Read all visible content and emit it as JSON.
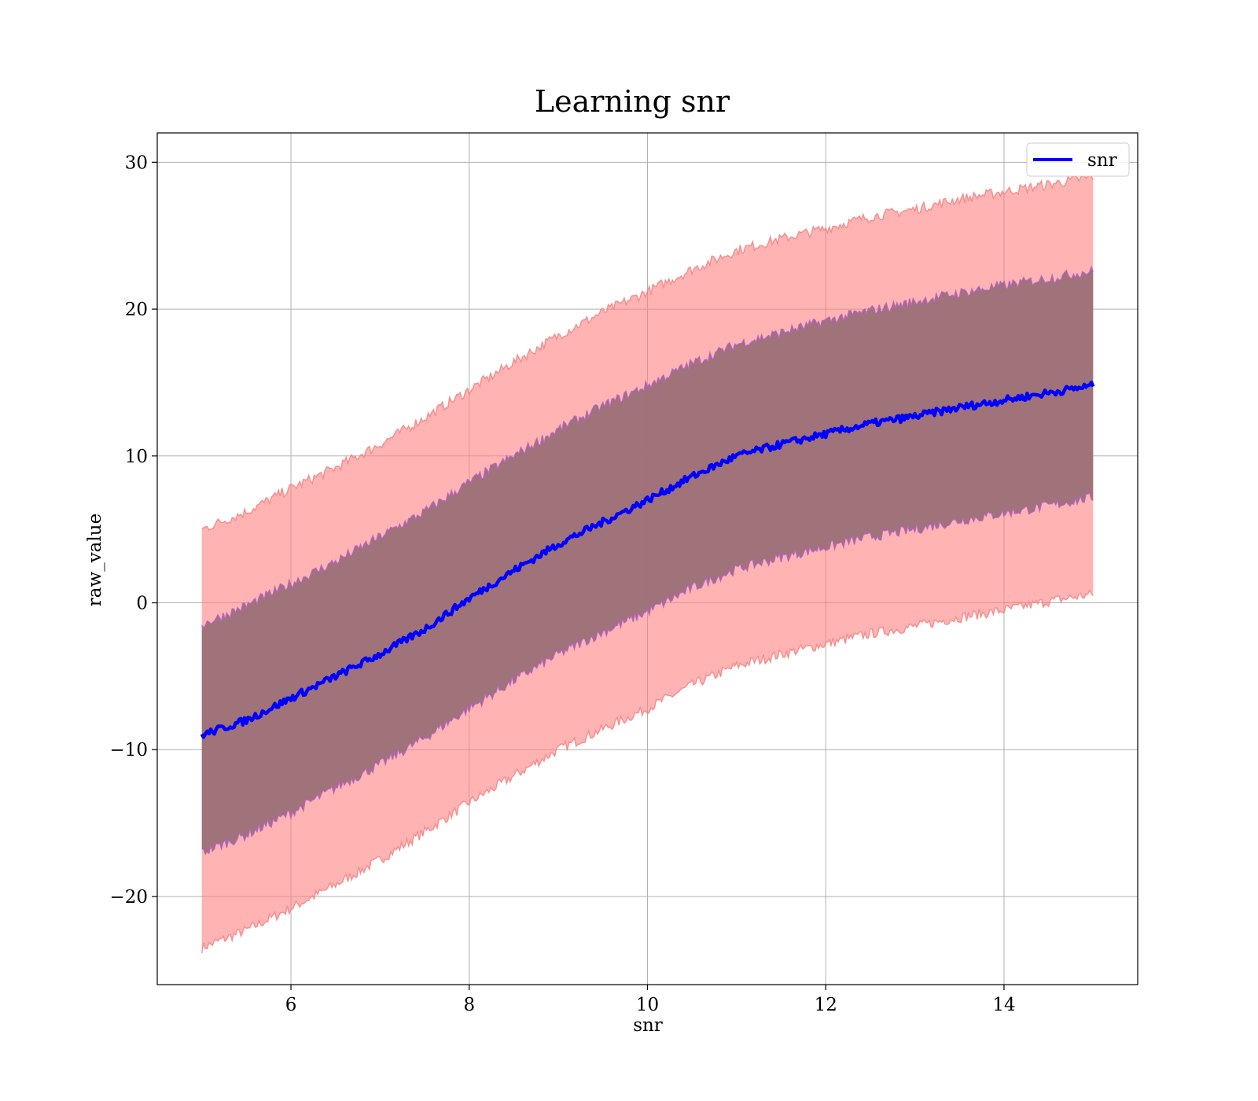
{
  "chart_data": {
    "type": "line",
    "title": "Learning snr",
    "xlabel": "snr",
    "ylabel": "raw_value",
    "xlim": [
      4.5,
      15.5
    ],
    "ylim": [
      -26,
      32
    ],
    "xticks": [
      6,
      8,
      10,
      12,
      14
    ],
    "yticks": [
      -20,
      -10,
      0,
      10,
      20,
      30
    ],
    "xtick_labels": [
      "6",
      "8",
      "10",
      "12",
      "14"
    ],
    "ytick_labels": [
      "−20",
      "−10",
      "0",
      "10",
      "20",
      "30"
    ],
    "grid": true,
    "legend": {
      "position": "top-right",
      "entries": [
        "snr"
      ]
    },
    "colors": {
      "line": "#0000ff",
      "outer_band": "#ff8080",
      "outer_band_edge": "#f08080",
      "inner_band": "#9b6f77",
      "inner_band_edge": "#b060c0",
      "grid": "#b0b0b0"
    },
    "x": [
      5,
      5.5,
      6,
      6.5,
      7,
      7.5,
      8,
      8.5,
      9,
      9.5,
      10,
      10.5,
      11,
      11.5,
      12,
      12.5,
      13,
      13.5,
      14,
      14.5,
      15
    ],
    "series": [
      {
        "name": "snr",
        "values": [
          -9,
          -8,
          -6.5,
          -5,
          -3.5,
          -1.8,
          0.3,
          2.2,
          4,
          5.5,
          7,
          8.6,
          10,
          10.8,
          11.5,
          12.2,
          12.7,
          13.3,
          13.8,
          14.3,
          14.8
        ]
      }
    ],
    "bands": [
      {
        "role": "outer",
        "lower": [
          -23.5,
          -22.3,
          -20.8,
          -19.2,
          -17.5,
          -15.6,
          -13.6,
          -11.8,
          -10,
          -8.6,
          -7.2,
          -5.6,
          -4.3,
          -3.5,
          -2.8,
          -2.1,
          -1.6,
          -1,
          -0.5,
          0.1,
          0.6
        ],
        "upper": [
          5,
          6.2,
          7.8,
          9.2,
          10.8,
          12.6,
          14.5,
          16.4,
          18.2,
          19.8,
          21.2,
          22.7,
          24,
          24.8,
          25.5,
          26.3,
          26.8,
          27.5,
          28,
          28.5,
          29
        ]
      },
      {
        "role": "inner",
        "lower": [
          -17,
          -15.8,
          -14.3,
          -12.6,
          -11,
          -9.2,
          -7.2,
          -5.3,
          -3.5,
          -2,
          -0.6,
          1,
          2.3,
          3.1,
          3.8,
          4.5,
          5,
          5.6,
          6.1,
          6.6,
          7.2
        ],
        "upper": [
          -1.5,
          -0.2,
          1.3,
          2.8,
          4.5,
          6.2,
          8.2,
          10,
          11.8,
          13.4,
          14.8,
          16.3,
          17.6,
          18.4,
          19.2,
          19.9,
          20.5,
          21.1,
          21.6,
          22.1,
          22.6
        ]
      }
    ]
  }
}
